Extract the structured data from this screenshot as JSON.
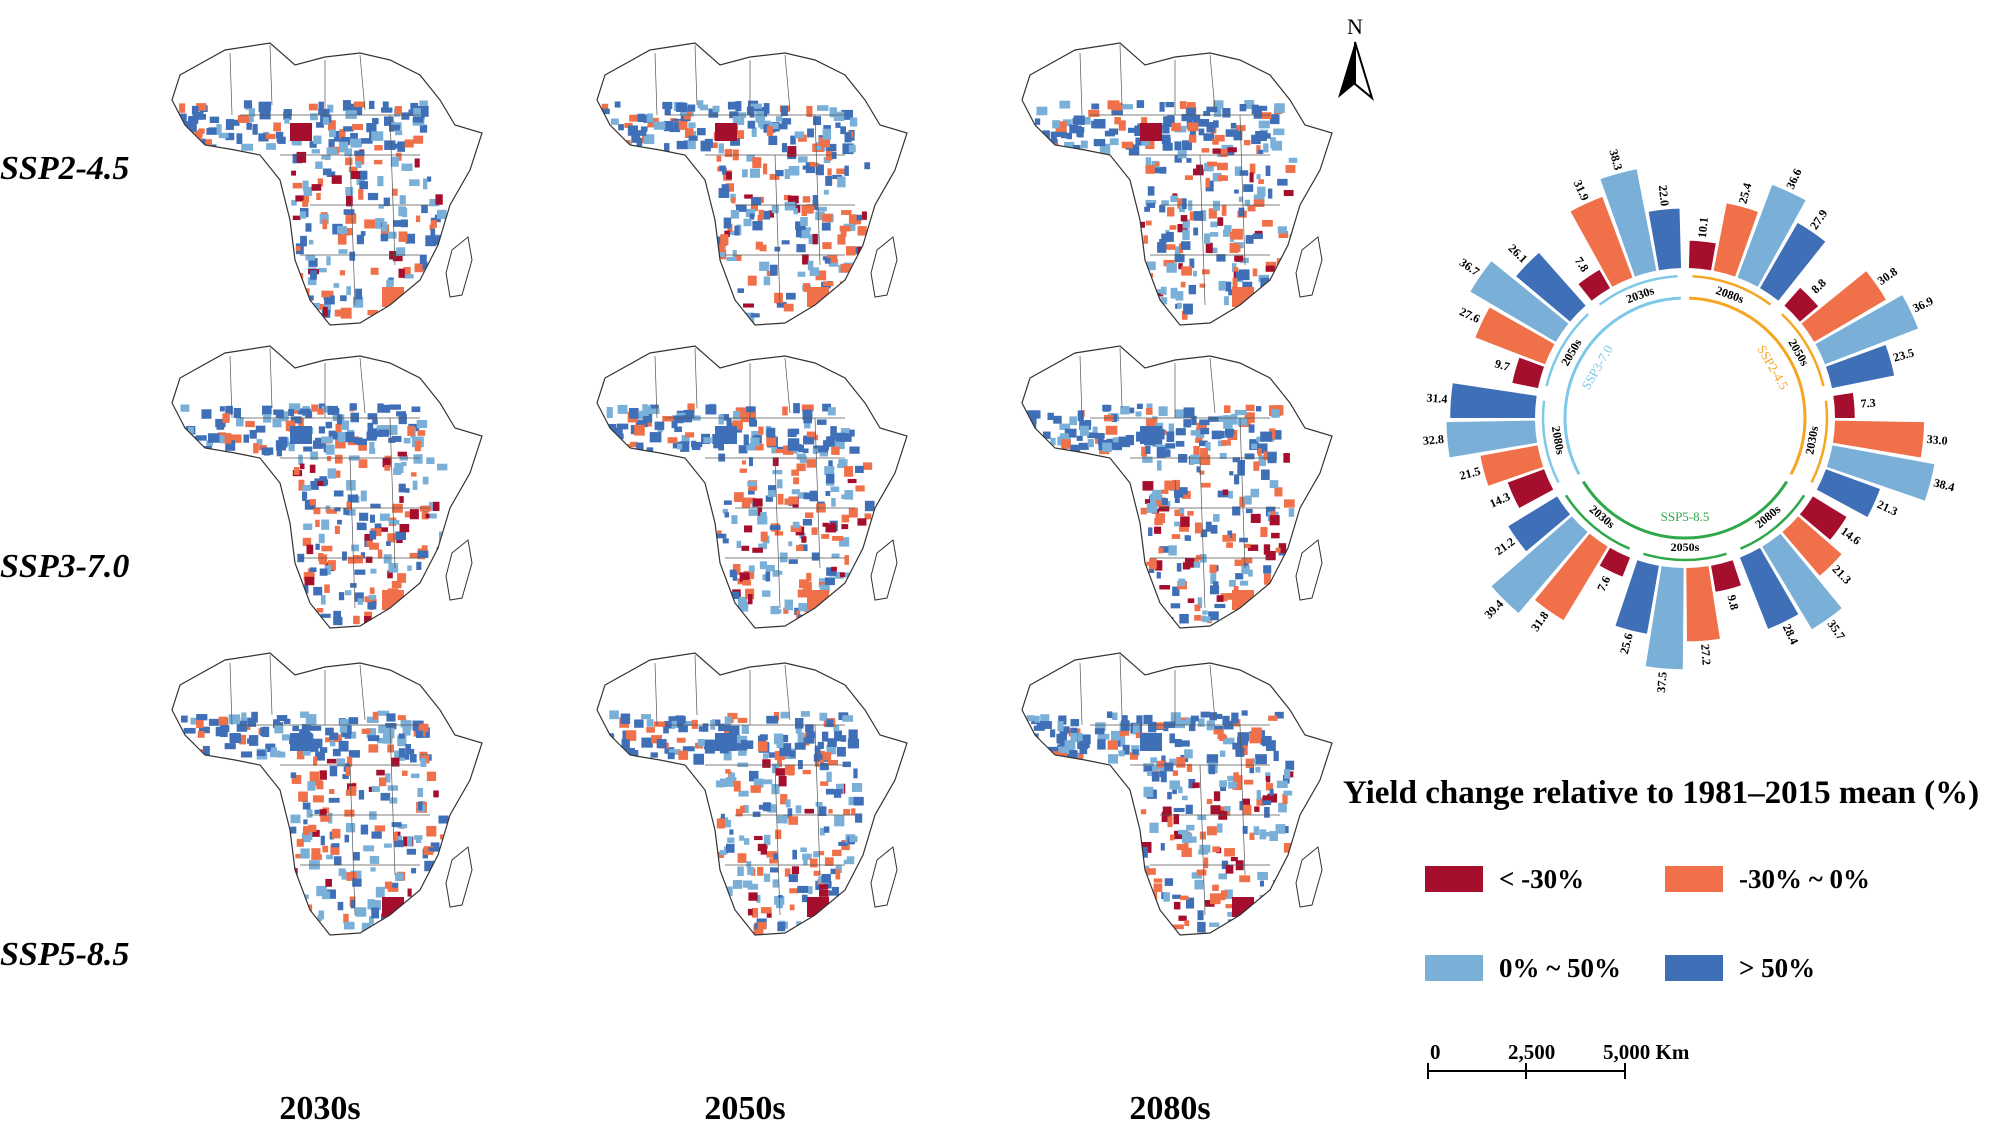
{
  "rows": [
    {
      "label": "SSP2-4.5",
      "key": "ssp245"
    },
    {
      "label": "SSP3-7.0",
      "key": "ssp370"
    },
    {
      "label": "SSP5-8.5",
      "key": "ssp585"
    }
  ],
  "columns": [
    "2030s",
    "2050s",
    "2080s"
  ],
  "north_label": "N",
  "legend": {
    "title": "Yield change relative to 1981–2015 mean (%)",
    "items": [
      {
        "label": "< -30%",
        "color": "#a50f2d"
      },
      {
        "label": "-30% ~ 0%",
        "color": "#f0704a"
      },
      {
        "label": "0% ~ 50%",
        "color": "#7ab0d8"
      },
      {
        "label": "> 50%",
        "color": "#3f6fb7"
      }
    ]
  },
  "scale_bar": {
    "labels": [
      "0",
      "2,500",
      "5,000 Km"
    ]
  },
  "chart_data": {
    "type": "bar",
    "layout": "radial",
    "series_colors": [
      "#a50f2d",
      "#f0704a",
      "#7ab0d8",
      "#3f6fb7"
    ],
    "groups": [
      {
        "scenario": "SSP2-4.5",
        "scenario_color": "#f5a623",
        "period": "2080s",
        "values": [
          10.1,
          25.4,
          36.6,
          27.9
        ]
      },
      {
        "scenario": "SSP2-4.5",
        "scenario_color": "#f5a623",
        "period": "2050s",
        "values": [
          8.8,
          30.8,
          36.9,
          23.5
        ]
      },
      {
        "scenario": "SSP2-4.5",
        "scenario_color": "#f5a623",
        "period": "2030s",
        "values": [
          7.3,
          33.0,
          38.4,
          21.3
        ]
      },
      {
        "scenario": "SSP5-8.5",
        "scenario_color": "#2ea84a",
        "period": "2080s",
        "values": [
          14.6,
          21.3,
          35.7,
          28.4
        ]
      },
      {
        "scenario": "SSP5-8.5",
        "scenario_color": "#2ea84a",
        "period": "2050s",
        "values": [
          9.8,
          27.2,
          37.5,
          25.6
        ]
      },
      {
        "scenario": "SSP5-8.5",
        "scenario_color": "#2ea84a",
        "period": "2030s",
        "values": [
          7.6,
          31.8,
          39.4,
          21.2
        ]
      },
      {
        "scenario": "SSP3-7.0",
        "scenario_color": "#7ec8e8",
        "period": "2080s",
        "values": [
          14.3,
          21.5,
          32.8,
          31.4
        ]
      },
      {
        "scenario": "SSP3-7.0",
        "scenario_color": "#7ec8e8",
        "period": "2050s",
        "values": [
          9.7,
          27.6,
          36.7,
          26.1
        ]
      },
      {
        "scenario": "SSP3-7.0",
        "scenario_color": "#7ec8e8",
        "period": "2030s",
        "values": [
          7.8,
          31.9,
          38.3,
          22.0
        ]
      }
    ]
  }
}
